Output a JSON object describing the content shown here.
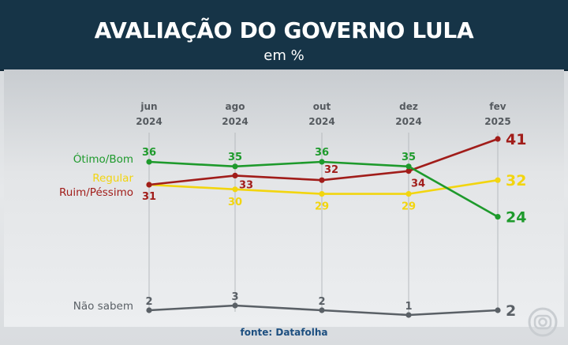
{
  "header": {
    "title": "AVALIAÇÃO DO GOVERNO LULA",
    "subtitle": "em %"
  },
  "source": "fonte: Datafolha",
  "colors": {
    "otimo_bom": "#1e9a2c",
    "regular": "#f2d50f",
    "ruim_pessimo": "#a11d1a",
    "nao_sabem": "#5a6066",
    "header_bg": "#163447",
    "axis_label": "#555a5f"
  },
  "chart_data": {
    "type": "line",
    "categories": [
      [
        "jun",
        "2024"
      ],
      [
        "ago",
        "2024"
      ],
      [
        "out",
        "2024"
      ],
      [
        "dez",
        "2024"
      ],
      [
        "fev",
        "2025"
      ]
    ],
    "series": [
      {
        "name": "Ótimo/Bom",
        "color": "#1e9a2c",
        "values": [
          36,
          35,
          36,
          35,
          24
        ]
      },
      {
        "name": "Regular",
        "color": "#f2d50f",
        "values": [
          31,
          30,
          29,
          29,
          32
        ]
      },
      {
        "name": "Ruim/Péssimo",
        "color": "#a11d1a",
        "values": [
          31,
          33,
          32,
          34,
          41
        ]
      },
      {
        "name": "Não sabem",
        "color": "#5a6066",
        "values": [
          2,
          3,
          2,
          1,
          2
        ]
      }
    ],
    "ylabel": "",
    "xlabel": "",
    "grid": "vertical",
    "legend": "left"
  }
}
